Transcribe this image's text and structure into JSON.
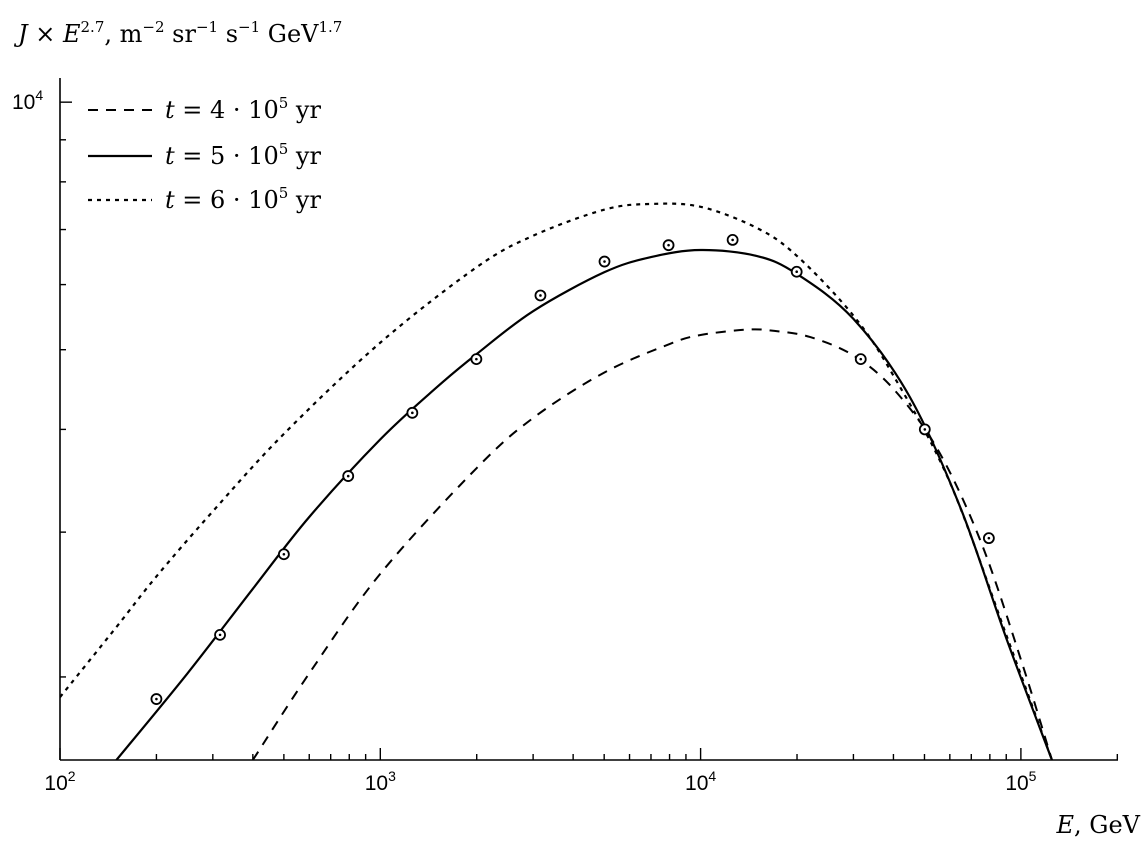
{
  "chart_data": {
    "type": "line",
    "title": "",
    "ylabel": "J × E^2.7, m^-2 sr^-1 s^-1 GeV^1.7",
    "ylabel_parts": {
      "main": "J × E",
      "exp1": "2.7",
      "units": ", m",
      "exp2": "−2",
      "sr": " sr",
      "exp3": "−1",
      "s": " s",
      "exp4": "−1",
      "gev": " GeV",
      "exp5": "1.7"
    },
    "xlabel": "E, GeV",
    "xlabel_parts": {
      "main": "E",
      "unit": ", GeV"
    },
    "x_scale": "log",
    "y_scale": "log",
    "xlim": [
      100,
      200000
    ],
    "ylim": [
      1585,
      10700
    ],
    "x_ticks": [
      {
        "base": "10",
        "exp": "2"
      },
      {
        "base": "10",
        "exp": "3"
      },
      {
        "base": "10",
        "exp": "4"
      },
      {
        "base": "10",
        "exp": "5"
      }
    ],
    "y_ticks": [
      {
        "base": "10",
        "exp": "4"
      }
    ],
    "legend_position": "top-left",
    "series": [
      {
        "name": "t = 4 · 10^5 yr",
        "name_parts": {
          "pre": "t = 4 · 10",
          "exp": "5",
          "post": " yr"
        },
        "style": "dashed",
        "x": [
          400,
          600,
          1000,
          2000,
          3000,
          5000,
          8000,
          10000,
          14000,
          17000,
          22000,
          30000,
          40000,
          55000,
          75000,
          100000,
          125000
        ],
        "y": [
          1585,
          2020,
          2670,
          3590,
          4130,
          4690,
          5080,
          5210,
          5290,
          5270,
          5180,
          4920,
          4480,
          3780,
          2920,
          2100,
          1585
        ]
      },
      {
        "name": "t = 5 · 10^5 yr",
        "name_parts": {
          "pre": "t = 5 · 10",
          "exp": "5",
          "post": " yr"
        },
        "style": "solid",
        "x": [
          150,
          250,
          400,
          600,
          1000,
          1500,
          2000,
          3000,
          5000,
          7000,
          10000,
          15000,
          20000,
          30000,
          45000,
          65000,
          90000,
          125000
        ],
        "y": [
          1585,
          2020,
          2560,
          3130,
          3890,
          4500,
          4940,
          5570,
          6210,
          6480,
          6610,
          6500,
          6180,
          5450,
          4380,
          3200,
          2230,
          1585
        ]
      },
      {
        "name": "t = 6 · 10^5 yr",
        "name_parts": {
          "pre": "t = 6 · 10",
          "exp": "5",
          "post": " yr"
        },
        "style": "dotted",
        "x": [
          100,
          150,
          200,
          300,
          500,
          1000,
          2000,
          3000,
          5000,
          7000,
          10000,
          15000,
          20000,
          30000,
          40000,
          60000,
          90000,
          125000
        ],
        "y": [
          1890,
          2300,
          2650,
          3180,
          3950,
          5100,
          6300,
          6880,
          7400,
          7520,
          7460,
          7030,
          6500,
          5500,
          4650,
          3450,
          2250,
          1585
        ]
      },
      {
        "name": "",
        "style": "circle-dot-markers",
        "x": [
          200,
          316,
          500,
          794,
          1259,
          1995,
          3162,
          5012,
          7943,
          12589,
          19953,
          31623,
          50119,
          79433
        ],
        "y": [
          1880,
          2250,
          2820,
          3510,
          4190,
          4870,
          5820,
          6400,
          6700,
          6800,
          6220,
          4870,
          4000,
          2950
        ]
      }
    ]
  }
}
